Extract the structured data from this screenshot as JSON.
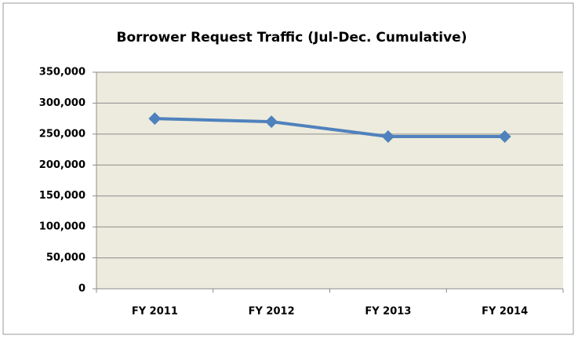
{
  "chart_data": {
    "type": "line",
    "title": "Borrower Request Traffic  (Jul-Dec. Cumulative)",
    "categories": [
      "FY 2011",
      "FY 2012",
      "FY 2013",
      "FY 2014"
    ],
    "series": [
      {
        "name": "Borrower Request Traffic",
        "color": "#4f81bd",
        "values": [
          275000,
          270000,
          246000,
          246000
        ]
      }
    ],
    "ylim": [
      0,
      350000
    ],
    "yticks": [
      0,
      {
        "value": 50000,
        "label": "50,000"
      },
      {
        "value": 100000,
        "label": "100,000"
      },
      {
        "value": 150000,
        "label": "150,000"
      },
      {
        "value": 200000,
        "label": "200,000"
      },
      {
        "value": 250000,
        "label": "250,000"
      },
      {
        "value": 300000,
        "label": "300,000"
      },
      {
        "value": 350000,
        "label": "350,000"
      }
    ],
    "grid": true,
    "legend": false
  }
}
